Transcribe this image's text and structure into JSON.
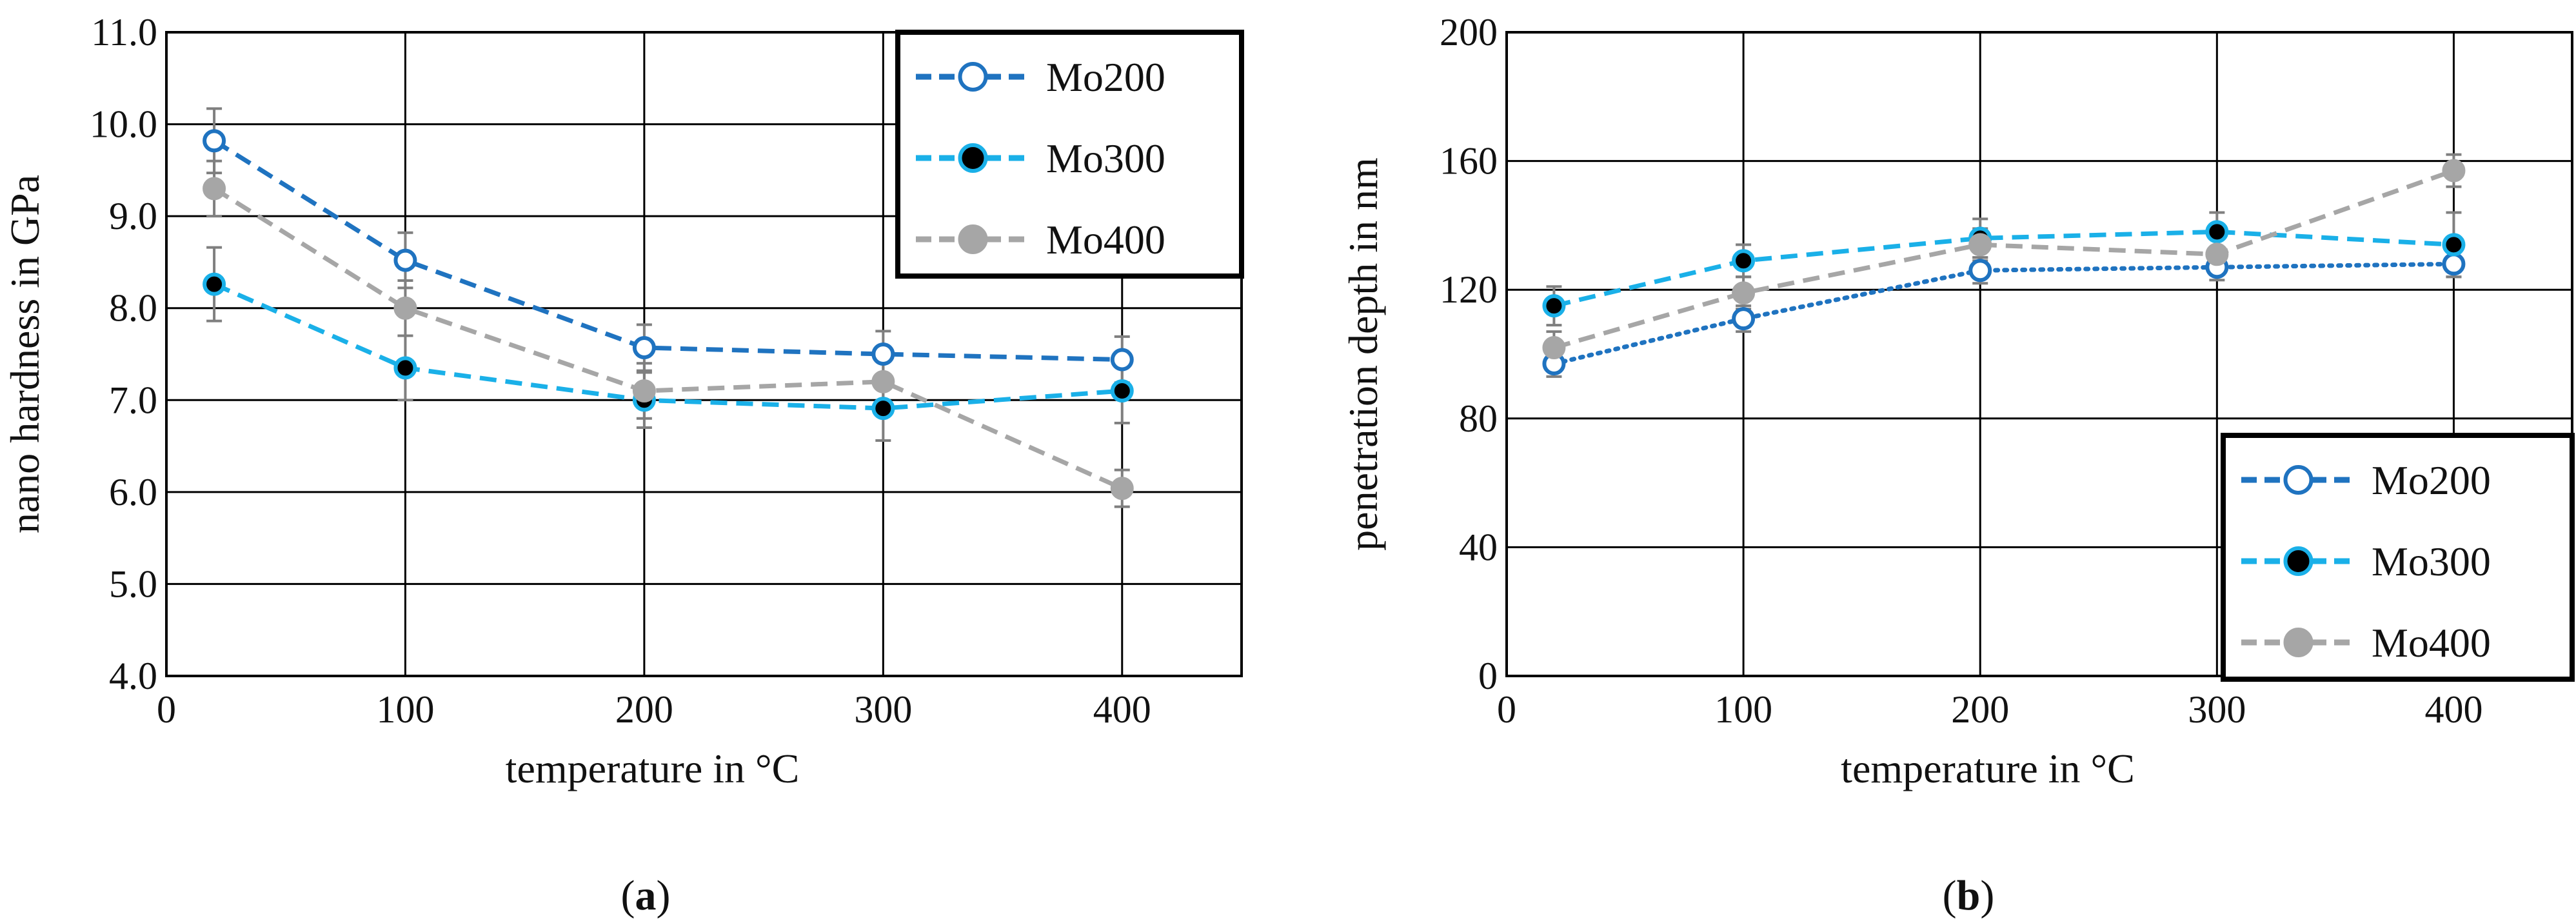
{
  "colors": {
    "mo200": "#1f73c0",
    "mo300": "#1ab0e8",
    "mo400": "#a6a6a6",
    "errorbar": "#7f7f7f",
    "grid": "#000000"
  },
  "chart_data": [
    {
      "type": "line",
      "panel_label_prefix": "(",
      "panel_label": "a",
      "panel_label_suffix": ")",
      "title": "",
      "xlabel": "temperature in °C",
      "ylabel": "nano hardness in GPa",
      "xlim": [
        0,
        450
      ],
      "ylim": [
        4.0,
        11.0
      ],
      "xticks": [
        0,
        100,
        200,
        300,
        400
      ],
      "yticks": [
        4.0,
        5.0,
        6.0,
        7.0,
        8.0,
        9.0,
        10.0,
        11.0
      ],
      "xtick_labels": [
        "0",
        "100",
        "200",
        "300",
        "400"
      ],
      "ytick_labels": [
        "4.0",
        "5.0",
        "6.0",
        "7.0",
        "8.0",
        "9.0",
        "10.0",
        "11.0"
      ],
      "grid": true,
      "legend_position": "top-right",
      "x": [
        20,
        100,
        200,
        300,
        400
      ],
      "series": [
        {
          "name": "Mo200",
          "style": "hollow",
          "line": "dashed",
          "color": "#1f73c0",
          "values": [
            9.82,
            8.52,
            7.57,
            7.5,
            7.44
          ],
          "errors": [
            0.35,
            0.3,
            0.25,
            0.25,
            0.25
          ]
        },
        {
          "name": "Mo300",
          "style": "black",
          "line": "dashed",
          "color": "#1ab0e8",
          "values": [
            8.26,
            7.35,
            7.0,
            6.91,
            7.1
          ],
          "errors": [
            0.4,
            0.35,
            0.3,
            0.35,
            0.35
          ]
        },
        {
          "name": "Mo400",
          "style": "filled",
          "line": "dashed",
          "color": "#a6a6a6",
          "values": [
            9.3,
            8.0,
            7.1,
            7.2,
            6.04
          ],
          "errors": [
            0.3,
            0.3,
            0.3,
            0.25,
            0.2
          ]
        }
      ]
    },
    {
      "type": "line",
      "panel_label_prefix": "(",
      "panel_label": "b",
      "panel_label_suffix": ")",
      "title": "",
      "xlabel": "temperature in °C",
      "ylabel": "penetration depth in nm",
      "xlim": [
        0,
        450
      ],
      "ylim": [
        0,
        200
      ],
      "xticks": [
        0,
        100,
        200,
        300,
        400
      ],
      "yticks": [
        0,
        40,
        80,
        120,
        160,
        200
      ],
      "xtick_labels": [
        "0",
        "100",
        "200",
        "300",
        "400"
      ],
      "ytick_labels": [
        "0",
        "40",
        "80",
        "120",
        "160",
        "200"
      ],
      "grid": true,
      "legend_position": "bottom-right",
      "x": [
        20,
        100,
        200,
        300,
        400
      ],
      "series": [
        {
          "name": "Mo200",
          "style": "hollow",
          "line": "dotted",
          "color": "#1f73c0",
          "values": [
            97,
            111,
            126,
            127,
            128
          ],
          "errors": [
            4,
            4,
            4,
            4,
            4
          ]
        },
        {
          "name": "Mo300",
          "style": "black",
          "line": "dashed",
          "color": "#1ab0e8",
          "values": [
            115,
            129,
            136,
            138,
            134
          ],
          "errors": [
            6,
            5,
            6,
            6,
            10
          ]
        },
        {
          "name": "Mo400",
          "style": "filled",
          "line": "dashed",
          "color": "#a6a6a6",
          "values": [
            102,
            119,
            134,
            131,
            157
          ],
          "errors": [
            5,
            5,
            5,
            5,
            5
          ]
        }
      ]
    }
  ]
}
